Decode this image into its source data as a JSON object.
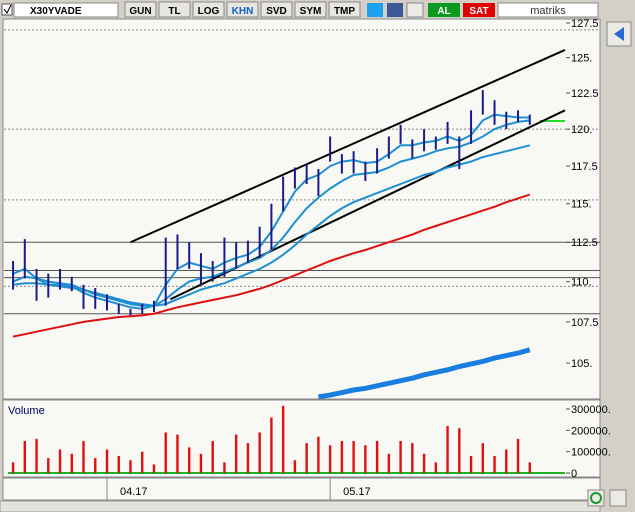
{
  "toolbar": {
    "symbol": "X30YVADE",
    "buttons": [
      "GUN",
      "TL",
      "LOG",
      "KHN",
      "SVD",
      "SYM",
      "TMP"
    ],
    "active_button": 3,
    "trade_buttons": [
      "AL",
      "SAT"
    ],
    "brand": "matriks"
  },
  "chart_data": [
    {
      "type": "ohlc",
      "log_scale": true,
      "ylim": [
        102.93,
        128.08
      ],
      "xlim": [
        -0.43,
        47.0
      ],
      "yticks": [
        {
          "value": 105,
          "label": "105."
        },
        107.5,
        {
          "value": 110,
          "label": "110."
        },
        112.5,
        {
          "value": 115,
          "label": "115."
        },
        117.5,
        {
          "value": 120,
          "label": "120."
        },
        122.5,
        {
          "value": 125,
          "label": "125."
        },
        127.5
      ],
      "bars": {
        "color": "#1a1a8c",
        "high": [
          111.3,
          112.7,
          110.8,
          110.5,
          110.8,
          110.3,
          109.8,
          109.6,
          109.2,
          108.6,
          108.3,
          108.6,
          108.8,
          112.8,
          113,
          112.5,
          111.8,
          111.3,
          112.8,
          112.5,
          112.6,
          113.5,
          115,
          116.8,
          117.4,
          117.6,
          117.3,
          119.5,
          118.3,
          118.5,
          117.8,
          118.7,
          119.5,
          120.3,
          119.3,
          120,
          119.5,
          120.5,
          119.5,
          121.3,
          122.7,
          122,
          121.2,
          121.3,
          121
        ],
        "low": [
          109.5,
          110.2,
          108.8,
          109,
          109.5,
          109.4,
          108.3,
          108.3,
          108.2,
          108,
          107.9,
          108,
          108.1,
          108.5,
          110.8,
          110.8,
          109.8,
          110,
          110.3,
          110.8,
          111.2,
          111.5,
          112,
          114.5,
          116,
          116.3,
          115.5,
          117.8,
          117,
          117,
          116.5,
          117,
          118,
          119,
          118,
          118.5,
          118.6,
          119,
          117.3,
          119,
          121,
          120.3,
          120,
          120.5,
          120.3
        ]
      },
      "series": [
        {
          "color": "#1e8fd0",
          "values": [
            110.5,
            110.8,
            110.2,
            109.8,
            109.8,
            109.7,
            109.3,
            109,
            108.8,
            108.6,
            108.4,
            108.3,
            108.5,
            109.8,
            110.8,
            111.2,
            111,
            110.8,
            111.2,
            111.5,
            111.7,
            112.2,
            113.2,
            114.5,
            115.8,
            116.6,
            116.9,
            117.5,
            117.8,
            117.9,
            117.7,
            117.8,
            118.3,
            118.9,
            118.9,
            119.1,
            119.2,
            119.5,
            119.2,
            119.6,
            120.6,
            121,
            120.9,
            120.8,
            120.8
          ]
        },
        {
          "color": "#1e8fd0",
          "values": [
            110,
            110.3,
            110.2,
            110,
            109.9,
            109.8,
            109.5,
            109.2,
            109,
            108.8,
            108.6,
            108.5,
            108.5,
            108.9,
            109.5,
            110,
            110.2,
            110.3,
            110.6,
            110.9,
            111.2,
            111.5,
            112,
            112.8,
            113.8,
            114.7,
            115.4,
            116,
            116.5,
            116.9,
            117,
            117.1,
            117.4,
            117.8,
            118,
            118.2,
            118.5,
            118.7,
            118.8,
            119.1,
            119.5,
            120,
            120.3,
            120.5,
            120.6
          ]
        },
        {
          "color": "#1e8fd0",
          "values": [
            109.8,
            109.9,
            109.9,
            109.8,
            109.7,
            109.6,
            109.5,
            109.3,
            109.1,
            108.9,
            108.7,
            108.6,
            108.5,
            108.6,
            108.9,
            109.2,
            109.5,
            109.7,
            109.9,
            110.2,
            110.5,
            110.8,
            111.2,
            111.7,
            112.3,
            113,
            113.6,
            114.2,
            114.7,
            115.1,
            115.4,
            115.7,
            116,
            116.3,
            116.6,
            116.9,
            117.1,
            117.4,
            117.6,
            117.8,
            118.1,
            118.3,
            118.5,
            118.7,
            118.9
          ]
        },
        {
          "color": "#e01010",
          "values": [
            106.6,
            106.75,
            106.9,
            107.05,
            107.2,
            107.35,
            107.5,
            107.6,
            107.7,
            107.8,
            107.85,
            107.9,
            108,
            108.2,
            108.4,
            108.55,
            108.7,
            108.85,
            109,
            109.15,
            109.35,
            109.55,
            109.8,
            110.1,
            110.4,
            110.7,
            111,
            111.3,
            111.55,
            111.8,
            112,
            112.25,
            112.5,
            112.75,
            113,
            113.3,
            113.55,
            113.8,
            114.05,
            114.3,
            114.55,
            114.8,
            115.1,
            115.35,
            115.6
          ]
        },
        {
          "color": "#1a7ee0",
          "width": 5,
          "values": [
            null,
            null,
            null,
            null,
            null,
            null,
            null,
            null,
            null,
            null,
            null,
            null,
            null,
            null,
            null,
            null,
            null,
            null,
            null,
            null,
            null,
            null,
            null,
            null,
            null,
            null,
            103.0,
            103.1,
            103.25,
            103.4,
            103.5,
            103.65,
            103.8,
            103.95,
            104.1,
            104.3,
            104.45,
            104.6,
            104.8,
            104.95,
            105.1,
            105.3,
            105.45,
            105.6,
            105.8
          ]
        }
      ],
      "trendlines": [
        {
          "x": [
            10,
            47
          ],
          "y": [
            112.5,
            125.55
          ]
        },
        {
          "x": [
            13.4,
            47
          ],
          "y": [
            108.9,
            121.3
          ]
        }
      ],
      "levels": [
        {
          "value": 127.0,
          "style": "dotted"
        },
        {
          "value": 120.0,
          "style": "dotted"
        },
        {
          "value": 115.25,
          "style": "dotted"
        },
        {
          "value": 112.5,
          "style": "solid"
        },
        {
          "value": 110.7,
          "style": "solid"
        },
        {
          "value": 110.25,
          "style": "solid"
        },
        {
          "value": 109.7,
          "style": "dotted"
        },
        {
          "value": 108.0,
          "style": "solid"
        }
      ]
    },
    {
      "type": "bar",
      "title": "Volume",
      "color": "#e01010",
      "ylim": [
        -14000,
        342000
      ],
      "xlim": [
        -0.43,
        47.0
      ],
      "yticks": [
        {
          "value": 0,
          "label": "0"
        },
        {
          "value": 100000,
          "label": "100000."
        },
        {
          "value": 200000,
          "label": "200000."
        },
        {
          "value": 300000,
          "label": "300000."
        }
      ],
      "xticks": [
        {
          "value": 8,
          "label": "04.17"
        },
        {
          "value": 27,
          "label": "05.17"
        }
      ],
      "values": [
        50000,
        150000,
        160000,
        70000,
        110000,
        90000,
        150000,
        70000,
        110000,
        80000,
        60000,
        100000,
        40000,
        190000,
        180000,
        120000,
        90000,
        150000,
        50000,
        180000,
        140000,
        190000,
        260000,
        315000,
        60000,
        140000,
        170000,
        130000,
        150000,
        150000,
        130000,
        150000,
        90000,
        150000,
        140000,
        90000,
        50000,
        220000,
        210000,
        80000,
        140000,
        80000,
        110000,
        160000,
        50000
      ]
    }
  ]
}
